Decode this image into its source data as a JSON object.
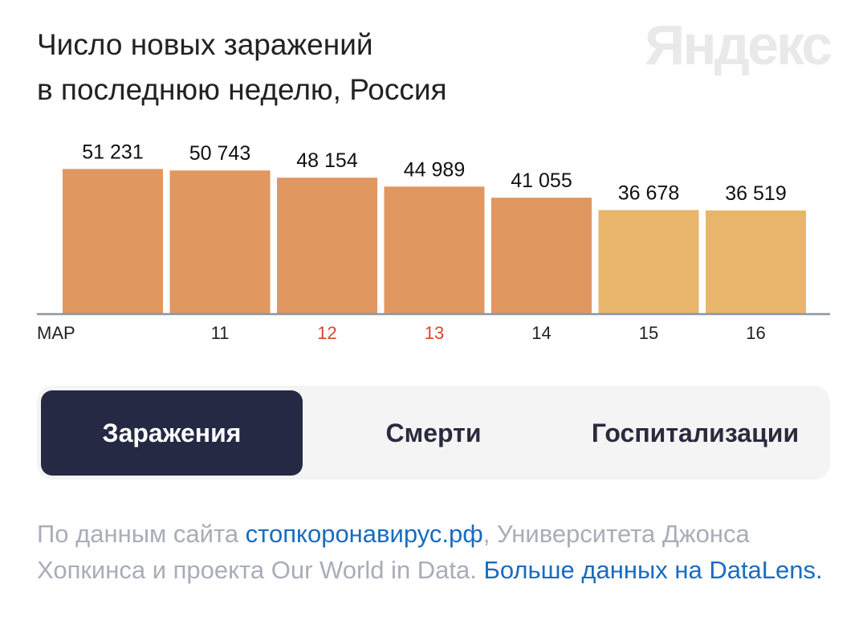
{
  "title": {
    "line1": "Число новых заражений",
    "line2": "в последнюю неделю, Россия"
  },
  "brand": "Яндекс",
  "chart_data": {
    "type": "bar",
    "title": "Число новых заражений в последнюю неделю, Россия",
    "categories": [
      "МАР",
      "11",
      "12",
      "13",
      "14",
      "15",
      "16"
    ],
    "values": [
      51231,
      50743,
      48154,
      44989,
      41055,
      36678,
      36519
    ],
    "value_labels": [
      "51 231",
      "50 743",
      "48 154",
      "44 989",
      "41 055",
      "36 678",
      "36 519"
    ],
    "ylim": [
      0,
      52500
    ],
    "xlabel": "",
    "ylabel": "",
    "grid": false,
    "colors": {
      "bar_primary": "#e09760",
      "bar_light": "#e8b66b",
      "axis": "#8c95a3",
      "tick_normal": "#222222",
      "tick_holiday": "#d9452f",
      "value_label": "#111111"
    },
    "bar_color_keys": [
      "primary",
      "primary",
      "primary",
      "primary",
      "primary",
      "light",
      "light"
    ],
    "tick_color_keys": [
      "normal",
      "normal",
      "holiday",
      "holiday",
      "normal",
      "normal",
      "normal"
    ]
  },
  "tabs": [
    {
      "label": "Заражения",
      "active": true
    },
    {
      "label": "Смерти",
      "active": false
    },
    {
      "label": "Госпитализации",
      "active": false
    }
  ],
  "source": {
    "prefix": "По данным сайта ",
    "link1": "стопкоронавирус.рф",
    "middle": ", Университета Джонса Хопкинса и проекта Our World in Data. ",
    "link2": "Больше данных на DataLens."
  }
}
